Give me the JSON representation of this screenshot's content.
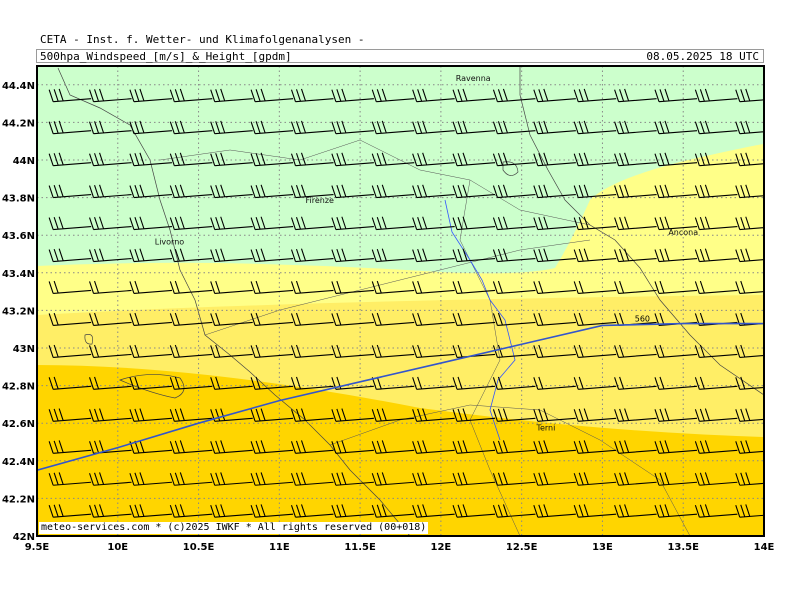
{
  "header": {
    "organization": "CETA - Inst. f. Wetter- und Klimafolgenanalysen -",
    "parameter": "500hpa_Windspeed_[m/s]_&_Height_[gpdm]",
    "valid_time": "08.05.2025 18 UTC"
  },
  "footer": "meteo-services.com * (c)2025 IWKF * All rights reserved (00+018)",
  "colors": {
    "green_zone": "#ccffcc",
    "light_yellow": "#ffff88",
    "yellow": "#ffee66",
    "gold": "#ffd500",
    "contour": "#3355cc",
    "coast": "#444444"
  },
  "chart_data": {
    "type": "map",
    "lon_range": [
      9.5,
      14.0
    ],
    "lat_range": [
      42.0,
      44.5
    ],
    "lon_ticks": [
      "9.5E",
      "10E",
      "10.5E",
      "11E",
      "11.5E",
      "12E",
      "12.5E",
      "13E",
      "13.5E",
      "14E"
    ],
    "lat_ticks": [
      "42N",
      "42.2N",
      "42.4N",
      "42.6N",
      "42.8N",
      "43N",
      "43.2N",
      "43.4N",
      "43.6N",
      "43.8N",
      "44N",
      "44.2N",
      "44.4N"
    ],
    "grid": true,
    "cities": [
      {
        "name": "Ravenna",
        "lon": 12.2,
        "lat": 44.42
      },
      {
        "name": "Firenze",
        "lon": 11.25,
        "lat": 43.77
      },
      {
        "name": "Livorno",
        "lon": 10.32,
        "lat": 43.55
      },
      {
        "name": "Ancona",
        "lon": 13.5,
        "lat": 43.6
      },
      {
        "name": "Terni",
        "lon": 12.65,
        "lat": 42.56
      }
    ],
    "contour": {
      "label": "560",
      "points": [
        [
          9.5,
          42.35
        ],
        [
          10.0,
          42.47
        ],
        [
          10.5,
          42.6
        ],
        [
          11.0,
          42.72
        ],
        [
          11.5,
          42.82
        ],
        [
          12.0,
          42.92
        ],
        [
          12.5,
          43.02
        ],
        [
          13.0,
          43.12
        ],
        [
          13.5,
          43.13
        ],
        [
          14.0,
          43.13
        ]
      ]
    },
    "wind_barbs": {
      "lon_start": 9.6,
      "lon_step": 0.25,
      "lat_start": 42.1,
      "lat_step": 0.17,
      "rows": 14,
      "cols": 18,
      "direction": "west"
    }
  }
}
